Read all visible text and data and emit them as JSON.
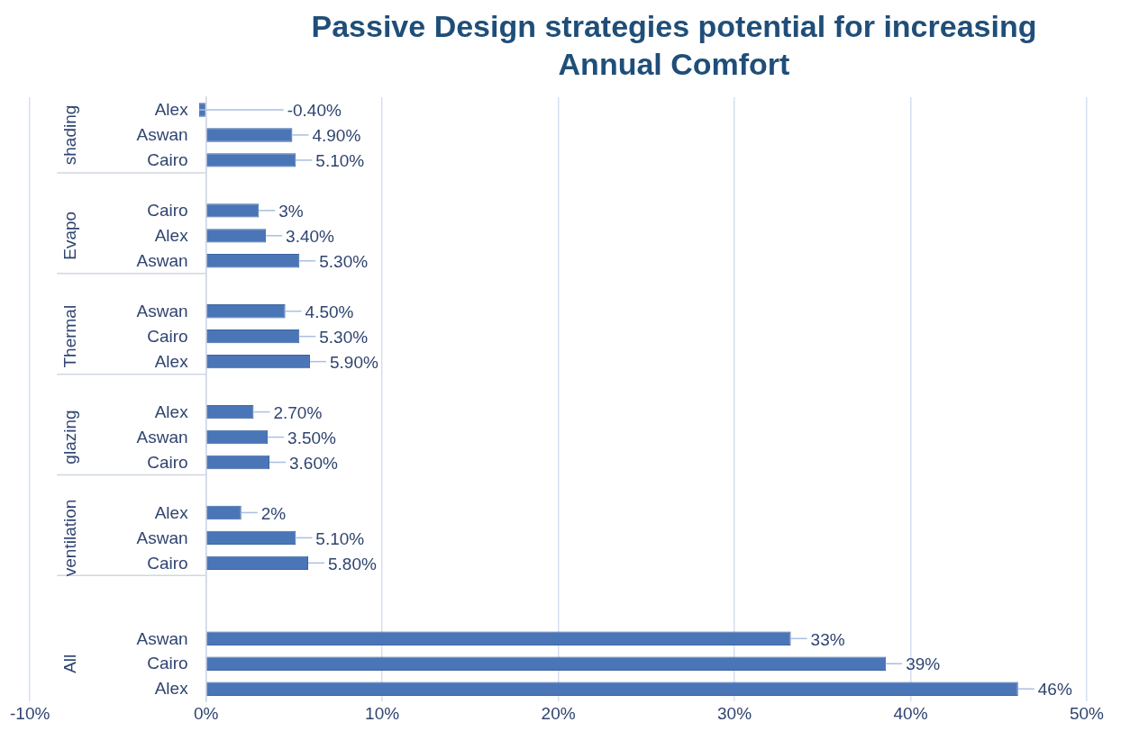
{
  "chart_data": {
    "type": "bar",
    "orientation": "horizontal",
    "title": "Passive Design strategies potential for increasing Annual Comfort",
    "categories": [
      "Alex",
      "Aswan",
      "Cairo",
      null,
      "Cairo",
      "Alex",
      "Aswan",
      null,
      "Aswan",
      "Cairo",
      "Alex",
      null,
      "Alex",
      "Aswan",
      "Cairo",
      null,
      "Alex",
      "Aswan",
      "Cairo",
      null,
      null,
      "Aswan",
      "Cairo",
      "Alex"
    ],
    "values": [
      -0.4,
      4.9,
      5.1,
      null,
      3,
      3.4,
      5.3,
      null,
      4.5,
      5.3,
      5.9,
      null,
      2.7,
      3.5,
      3.6,
      null,
      2,
      5.1,
      5.8,
      null,
      null,
      33.2,
      38.6,
      46.1
    ],
    "value_labels": [
      "-0.40%",
      "4.90%",
      "5.10%",
      null,
      "3%",
      "3.40%",
      "5.30%",
      null,
      "4.50%",
      "5.30%",
      "5.90%",
      null,
      "2.70%",
      "3.50%",
      "3.60%",
      null,
      "2%",
      "5.10%",
      "5.80%",
      null,
      null,
      "33%",
      "39%",
      "46%"
    ],
    "color": "#4a76b8",
    "annotations": [
      "shading",
      "Evapo",
      "Thermal",
      "glazing",
      "ventilation",
      "All"
    ],
    "xlim": [
      -10,
      50
    ],
    "xticks": [
      {
        "value": -10,
        "label": "-10%"
      },
      {
        "value": 0,
        "label": "0%"
      },
      {
        "value": 10,
        "label": "10%"
      },
      {
        "value": 20,
        "label": "20%"
      },
      {
        "value": 30,
        "label": "30%"
      },
      {
        "value": 40,
        "label": "40%"
      },
      {
        "value": 50,
        "label": "50%"
      }
    ],
    "grid": "x",
    "legend": false
  }
}
